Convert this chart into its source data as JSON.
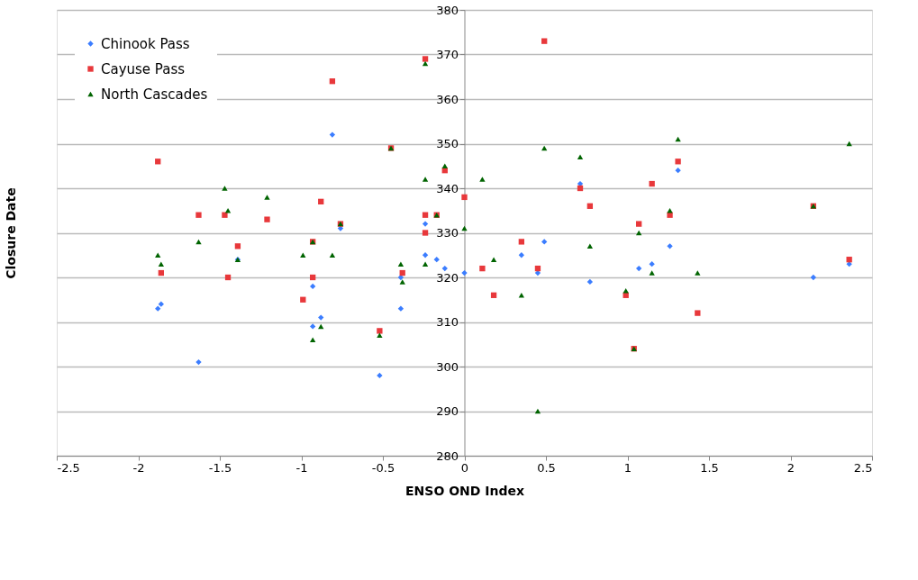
{
  "chart_data": {
    "type": "scatter",
    "xlabel": "ENSO OND Index",
    "ylabel": "Closure Date",
    "xlim": [
      -2.5,
      2.5
    ],
    "xticks": [
      -2.5,
      -2,
      -1.5,
      -1,
      -0.5,
      0,
      0.5,
      1,
      1.5,
      2,
      2.5
    ],
    "ylim": [
      280,
      380
    ],
    "yticks": [
      280,
      290,
      300,
      310,
      320,
      330,
      340,
      350,
      360,
      370,
      380
    ],
    "grid": "y",
    "legend": "top left",
    "series": [
      {
        "name": "Chinook Pass",
        "color": "#3b7dff",
        "marker": "diamond",
        "x": [
          -1.88,
          -1.86,
          -1.63,
          -1.39,
          -0.93,
          -0.93,
          -0.88,
          -0.81,
          -0.76,
          -0.52,
          -0.39,
          -0.39,
          -0.24,
          -0.24,
          -0.17,
          -0.12,
          0.0,
          0.35,
          0.45,
          0.49,
          0.71,
          0.77,
          1.07,
          1.15,
          1.26,
          1.31,
          2.14,
          2.36
        ],
        "values": [
          313,
          314,
          301,
          324,
          318,
          309,
          311,
          352,
          331,
          298,
          320,
          313,
          332,
          325,
          324,
          322,
          321,
          325,
          321,
          328,
          341,
          319,
          322,
          323,
          327,
          344,
          320,
          323
        ]
      },
      {
        "name": "Cayuse Pass",
        "color": "#e8383b",
        "marker": "square",
        "x": [
          -1.88,
          -1.86,
          -1.63,
          -1.47,
          -1.45,
          -1.39,
          -1.21,
          -0.99,
          -0.93,
          -0.93,
          -0.88,
          -0.81,
          -0.76,
          -0.52,
          -0.45,
          -0.38,
          -0.24,
          -0.24,
          -0.24,
          -0.17,
          -0.12,
          0.0,
          0.11,
          0.18,
          0.35,
          0.45,
          0.49,
          0.71,
          0.77,
          0.99,
          1.04,
          1.07,
          1.15,
          1.26,
          1.31,
          1.43,
          2.14,
          2.36
        ],
        "values": [
          346,
          321,
          334,
          334,
          320,
          327,
          333,
          315,
          320,
          328,
          337,
          364,
          332,
          308,
          349,
          321,
          369,
          334,
          330,
          334,
          344,
          338,
          322,
          316,
          328,
          322,
          373,
          340,
          336,
          316,
          304,
          332,
          341,
          334,
          346,
          312,
          336,
          324
        ]
      },
      {
        "name": "North Cascades",
        "color": "#006400",
        "marker": "triangle",
        "x": [
          -1.88,
          -1.86,
          -1.63,
          -1.47,
          -1.45,
          -1.39,
          -1.21,
          -0.99,
          -0.93,
          -0.93,
          -0.88,
          -0.81,
          -0.76,
          -0.52,
          -0.45,
          -0.39,
          -0.38,
          -0.24,
          -0.24,
          -0.24,
          -0.17,
          -0.12,
          0.0,
          0.11,
          0.18,
          0.35,
          0.45,
          0.49,
          0.71,
          0.77,
          0.99,
          1.04,
          1.07,
          1.15,
          1.26,
          1.31,
          1.43,
          2.14,
          2.36
        ],
        "values": [
          325,
          323,
          328,
          340,
          335,
          324,
          338,
          325,
          328,
          306,
          309,
          325,
          332,
          307,
          349,
          323,
          319,
          368,
          342,
          323,
          334,
          345,
          331,
          342,
          324,
          316,
          290,
          349,
          347,
          327,
          317,
          304,
          330,
          321,
          335,
          351,
          321,
          336,
          350
        ]
      }
    ]
  }
}
